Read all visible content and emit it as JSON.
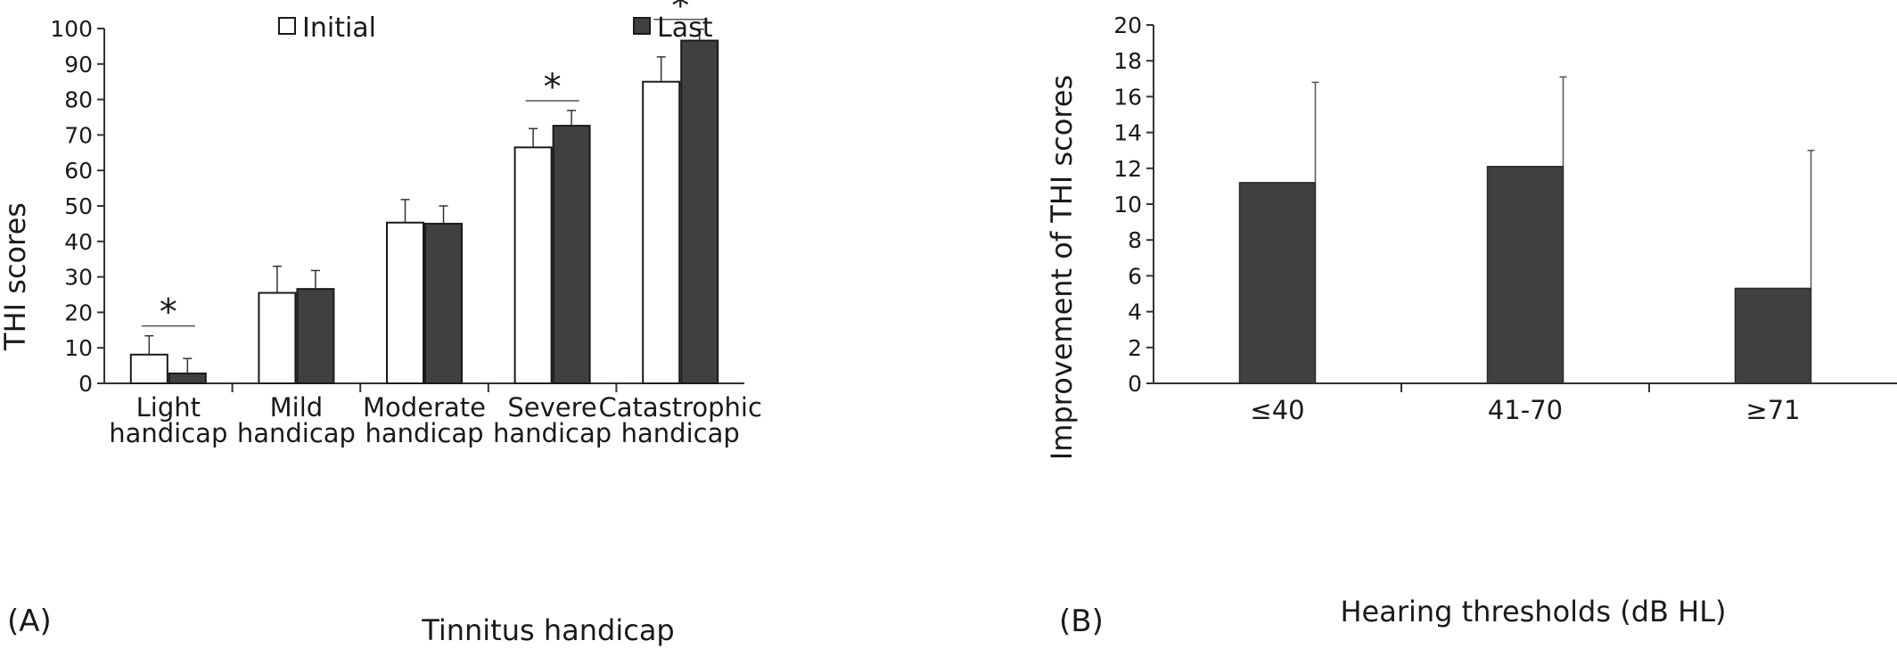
{
  "chart_data": [
    {
      "panel_label": "(A)",
      "type": "bar",
      "title": "",
      "xlabel": "Tinnitus handicap",
      "ylabel": "THI scores",
      "ylim": [
        0,
        100
      ],
      "yticks": [
        0,
        10,
        20,
        30,
        40,
        50,
        60,
        70,
        80,
        90,
        100
      ],
      "categories": [
        [
          "Light",
          "handicap"
        ],
        [
          "Mild",
          "handicap"
        ],
        [
          "Moderate",
          "handicap"
        ],
        [
          "Severe",
          "handicap"
        ],
        [
          "Catastrophic",
          "handicap"
        ]
      ],
      "series": [
        {
          "name": "Initial",
          "color": "#ffffff",
          "values": [
            8.1,
            25.5,
            45.3,
            66.5,
            85.0
          ],
          "errors": [
            5.3,
            7.5,
            6.5,
            5.3,
            7.0
          ]
        },
        {
          "name": "Last",
          "color": "#404040",
          "values": [
            2.8,
            26.6,
            45.0,
            72.6,
            96.6
          ],
          "errors": [
            4.2,
            5.2,
            5.0,
            4.3,
            3.2
          ]
        }
      ],
      "significance": [
        {
          "category_index": 0,
          "label": "*"
        },
        {
          "category_index": 3,
          "label": "*"
        },
        {
          "category_index": 4,
          "label": "*"
        }
      ],
      "legend": "top",
      "grid": false
    },
    {
      "panel_label": "(B)",
      "type": "bar",
      "title": "",
      "xlabel": "Hearing thresholds (dB HL)",
      "ylabel": "Improvement of THI scores",
      "ylim": [
        0,
        20
      ],
      "yticks": [
        0,
        2,
        4,
        6,
        8,
        10,
        12,
        14,
        16,
        18,
        20
      ],
      "categories": [
        "≤40",
        "41-70",
        "≥71"
      ],
      "series": [
        {
          "color": "#404040",
          "values": [
            11.2,
            12.1,
            5.3
          ],
          "errors": [
            5.6,
            5.0,
            7.7
          ]
        }
      ],
      "grid": false
    }
  ]
}
